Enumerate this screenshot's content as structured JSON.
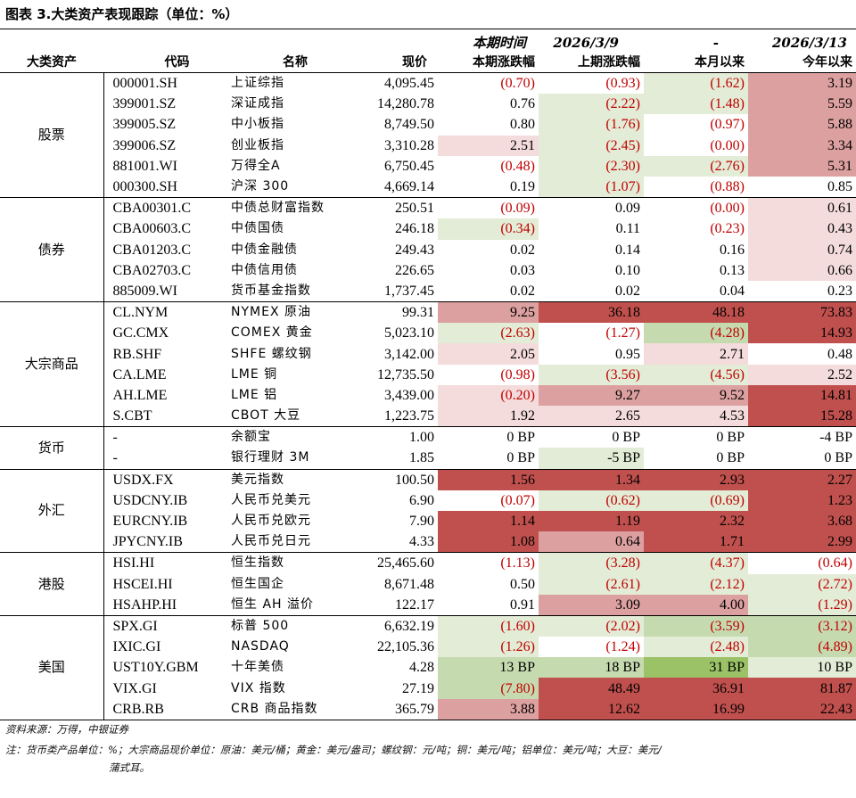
{
  "title": "图表 3.大类资产表现跟踪（单位：%）",
  "headers": {
    "row1": [
      "",
      "",
      "",
      "",
      "本期时间",
      "2026/3/9",
      "-",
      "2026/3/13"
    ],
    "row2": [
      "大类资产",
      "代码",
      "名称",
      "现价",
      "本期涨跌幅",
      "上期涨跌幅",
      "本月以来",
      "今年以来"
    ]
  },
  "colors": {
    "none": "#ffffff",
    "lightGreen": "#e3ecd6",
    "green": "#c6dab0",
    "deepGreen": "#9bc266",
    "lightRed": "#f4dcdc",
    "red": "#dca0a0",
    "deepRed": "#c0504d"
  },
  "groups": [
    {
      "name": "股票",
      "rows": [
        {
          "code": "000001.SH",
          "name": "上证综指",
          "price": "4,095.45",
          "cells": [
            {
              "v": "(0.70)",
              "neg": true,
              "bg": "none"
            },
            {
              "v": "(0.93)",
              "neg": true,
              "bg": "none"
            },
            {
              "v": "(1.62)",
              "neg": true,
              "bg": "lightGreen"
            },
            {
              "v": "3.19",
              "neg": false,
              "bg": "red"
            }
          ]
        },
        {
          "code": "399001.SZ",
          "name": "深证成指",
          "price": "14,280.78",
          "cells": [
            {
              "v": "0.76",
              "neg": false,
              "bg": "none"
            },
            {
              "v": "(2.22)",
              "neg": true,
              "bg": "lightGreen"
            },
            {
              "v": "(1.48)",
              "neg": true,
              "bg": "lightGreen"
            },
            {
              "v": "5.59",
              "neg": false,
              "bg": "red"
            }
          ]
        },
        {
          "code": "399005.SZ",
          "name": "中小板指",
          "price": "8,749.50",
          "cells": [
            {
              "v": "0.80",
              "neg": false,
              "bg": "none"
            },
            {
              "v": "(1.76)",
              "neg": true,
              "bg": "lightGreen"
            },
            {
              "v": "(0.97)",
              "neg": true,
              "bg": "none"
            },
            {
              "v": "5.88",
              "neg": false,
              "bg": "red"
            }
          ]
        },
        {
          "code": "399006.SZ",
          "name": "创业板指",
          "price": "3,310.28",
          "cells": [
            {
              "v": "2.51",
              "neg": false,
              "bg": "lightRed"
            },
            {
              "v": "(2.45)",
              "neg": true,
              "bg": "lightGreen"
            },
            {
              "v": "(0.00)",
              "neg": true,
              "bg": "none"
            },
            {
              "v": "3.34",
              "neg": false,
              "bg": "red"
            }
          ]
        },
        {
          "code": "881001.WI",
          "name": "万得全A",
          "price": "6,750.45",
          "cells": [
            {
              "v": "(0.48)",
              "neg": true,
              "bg": "none"
            },
            {
              "v": "(2.30)",
              "neg": true,
              "bg": "lightGreen"
            },
            {
              "v": "(2.76)",
              "neg": true,
              "bg": "lightGreen"
            },
            {
              "v": "5.31",
              "neg": false,
              "bg": "red"
            }
          ]
        },
        {
          "code": "000300.SH",
          "name": "沪深 300",
          "price": "4,669.14",
          "cells": [
            {
              "v": "0.19",
              "neg": false,
              "bg": "none"
            },
            {
              "v": "(1.07)",
              "neg": true,
              "bg": "lightGreen"
            },
            {
              "v": "(0.88)",
              "neg": true,
              "bg": "none"
            },
            {
              "v": "0.85",
              "neg": false,
              "bg": "none"
            }
          ]
        }
      ]
    },
    {
      "name": "债券",
      "rows": [
        {
          "code": "CBA00301.C",
          "name": "中债总财富指数",
          "price": "250.51",
          "cells": [
            {
              "v": "(0.09)",
              "neg": true,
              "bg": "none"
            },
            {
              "v": "0.09",
              "neg": false,
              "bg": "none"
            },
            {
              "v": "(0.00)",
              "neg": true,
              "bg": "none"
            },
            {
              "v": "0.61",
              "neg": false,
              "bg": "lightRed"
            }
          ]
        },
        {
          "code": "CBA00603.C",
          "name": "中债国债",
          "price": "246.18",
          "cells": [
            {
              "v": "(0.34)",
              "neg": true,
              "bg": "lightGreen"
            },
            {
              "v": "0.11",
              "neg": false,
              "bg": "none"
            },
            {
              "v": "(0.23)",
              "neg": true,
              "bg": "none"
            },
            {
              "v": "0.43",
              "neg": false,
              "bg": "lightRed"
            }
          ]
        },
        {
          "code": "CBA01203.C",
          "name": "中债金融债",
          "price": "249.43",
          "cells": [
            {
              "v": "0.02",
              "neg": false,
              "bg": "none"
            },
            {
              "v": "0.14",
              "neg": false,
              "bg": "none"
            },
            {
              "v": "0.16",
              "neg": false,
              "bg": "none"
            },
            {
              "v": "0.74",
              "neg": false,
              "bg": "lightRed"
            }
          ]
        },
        {
          "code": "CBA02703.C",
          "name": "中债信用债",
          "price": "226.65",
          "cells": [
            {
              "v": "0.03",
              "neg": false,
              "bg": "none"
            },
            {
              "v": "0.10",
              "neg": false,
              "bg": "none"
            },
            {
              "v": "0.13",
              "neg": false,
              "bg": "none"
            },
            {
              "v": "0.66",
              "neg": false,
              "bg": "lightRed"
            }
          ]
        },
        {
          "code": "885009.WI",
          "name": "货币基金指数",
          "price": "1,737.45",
          "cells": [
            {
              "v": "0.02",
              "neg": false,
              "bg": "none"
            },
            {
              "v": "0.02",
              "neg": false,
              "bg": "none"
            },
            {
              "v": "0.04",
              "neg": false,
              "bg": "none"
            },
            {
              "v": "0.23",
              "neg": false,
              "bg": "none"
            }
          ]
        }
      ]
    },
    {
      "name": "大宗商品",
      "rows": [
        {
          "code": "CL.NYM",
          "name": "NYMEX 原油",
          "price": "99.31",
          "cells": [
            {
              "v": "9.25",
              "neg": false,
              "bg": "red"
            },
            {
              "v": "36.18",
              "neg": false,
              "bg": "deepRed"
            },
            {
              "v": "48.18",
              "neg": false,
              "bg": "deepRed"
            },
            {
              "v": "73.83",
              "neg": false,
              "bg": "deepRed"
            }
          ]
        },
        {
          "code": "GC.CMX",
          "name": "COMEX 黄金",
          "price": "5,023.10",
          "cells": [
            {
              "v": "(2.63)",
              "neg": true,
              "bg": "lightGreen"
            },
            {
              "v": "(1.27)",
              "neg": true,
              "bg": "none"
            },
            {
              "v": "(4.28)",
              "neg": true,
              "bg": "green"
            },
            {
              "v": "14.93",
              "neg": false,
              "bg": "deepRed"
            }
          ]
        },
        {
          "code": "RB.SHF",
          "name": "SHFE 螺纹钢",
          "price": "3,142.00",
          "cells": [
            {
              "v": "2.05",
              "neg": false,
              "bg": "lightRed"
            },
            {
              "v": "0.95",
              "neg": false,
              "bg": "none"
            },
            {
              "v": "2.71",
              "neg": false,
              "bg": "lightRed"
            },
            {
              "v": "0.48",
              "neg": false,
              "bg": "none"
            }
          ]
        },
        {
          "code": "CA.LME",
          "name": "LME 铜",
          "price": "12,735.50",
          "cells": [
            {
              "v": "(0.98)",
              "neg": true,
              "bg": "none"
            },
            {
              "v": "(3.56)",
              "neg": true,
              "bg": "lightGreen"
            },
            {
              "v": "(4.56)",
              "neg": true,
              "bg": "lightGreen"
            },
            {
              "v": "2.52",
              "neg": false,
              "bg": "lightRed"
            }
          ]
        },
        {
          "code": "AH.LME",
          "name": "LME 铝",
          "price": "3,439.00",
          "cells": [
            {
              "v": "(0.20)",
              "neg": true,
              "bg": "lightRed"
            },
            {
              "v": "9.27",
              "neg": false,
              "bg": "red"
            },
            {
              "v": "9.52",
              "neg": false,
              "bg": "red"
            },
            {
              "v": "14.81",
              "neg": false,
              "bg": "deepRed"
            }
          ]
        },
        {
          "code": "S.CBT",
          "name": "CBOT 大豆",
          "price": "1,223.75",
          "cells": [
            {
              "v": "1.92",
              "neg": false,
              "bg": "lightRed"
            },
            {
              "v": "2.65",
              "neg": false,
              "bg": "lightRed"
            },
            {
              "v": "4.53",
              "neg": false,
              "bg": "lightRed"
            },
            {
              "v": "15.28",
              "neg": false,
              "bg": "deepRed"
            }
          ]
        }
      ]
    },
    {
      "name": "货币",
      "rows": [
        {
          "code": "-",
          "name": "余额宝",
          "price": "1.00",
          "cells": [
            {
              "v": "0 BP",
              "neg": false,
              "bg": "none"
            },
            {
              "v": "0 BP",
              "neg": false,
              "bg": "none"
            },
            {
              "v": "0 BP",
              "neg": false,
              "bg": "none"
            },
            {
              "v": "-4 BP",
              "neg": false,
              "bg": "none"
            }
          ]
        },
        {
          "code": "-",
          "name": "银行理财 3M",
          "price": "1.85",
          "cells": [
            {
              "v": "0 BP",
              "neg": false,
              "bg": "none"
            },
            {
              "v": "-5 BP",
              "neg": false,
              "bg": "lightGreen"
            },
            {
              "v": "0 BP",
              "neg": false,
              "bg": "none"
            },
            {
              "v": "0 BP",
              "neg": false,
              "bg": "none"
            }
          ]
        }
      ]
    },
    {
      "name": "外汇",
      "rows": [
        {
          "code": "USDX.FX",
          "name": "美元指数",
          "price": "100.50",
          "cells": [
            {
              "v": "1.56",
              "neg": false,
              "bg": "deepRed"
            },
            {
              "v": "1.34",
              "neg": false,
              "bg": "deepRed"
            },
            {
              "v": "2.93",
              "neg": false,
              "bg": "deepRed"
            },
            {
              "v": "2.27",
              "neg": false,
              "bg": "deepRed"
            }
          ]
        },
        {
          "code": "USDCNY.IB",
          "name": "人民币兑美元",
          "price": "6.90",
          "cells": [
            {
              "v": "(0.07)",
              "neg": true,
              "bg": "none"
            },
            {
              "v": "(0.62)",
              "neg": true,
              "bg": "lightGreen"
            },
            {
              "v": "(0.69)",
              "neg": true,
              "bg": "lightGreen"
            },
            {
              "v": "1.23",
              "neg": false,
              "bg": "deepRed"
            }
          ]
        },
        {
          "code": "EURCNY.IB",
          "name": "人民币兑欧元",
          "price": "7.90",
          "cells": [
            {
              "v": "1.14",
              "neg": false,
              "bg": "deepRed"
            },
            {
              "v": "1.19",
              "neg": false,
              "bg": "deepRed"
            },
            {
              "v": "2.32",
              "neg": false,
              "bg": "deepRed"
            },
            {
              "v": "3.68",
              "neg": false,
              "bg": "deepRed"
            }
          ]
        },
        {
          "code": "JPYCNY.IB",
          "name": "人民币兑日元",
          "price": "4.33",
          "cells": [
            {
              "v": "1.08",
              "neg": false,
              "bg": "deepRed"
            },
            {
              "v": "0.64",
              "neg": false,
              "bg": "red"
            },
            {
              "v": "1.71",
              "neg": false,
              "bg": "deepRed"
            },
            {
              "v": "2.99",
              "neg": false,
              "bg": "deepRed"
            }
          ]
        }
      ]
    },
    {
      "name": "港股",
      "rows": [
        {
          "code": "HSI.HI",
          "name": "恒生指数",
          "price": "25,465.60",
          "cells": [
            {
              "v": "(1.13)",
              "neg": true,
              "bg": "none"
            },
            {
              "v": "(3.28)",
              "neg": true,
              "bg": "lightGreen"
            },
            {
              "v": "(4.37)",
              "neg": true,
              "bg": "lightGreen"
            },
            {
              "v": "(0.64)",
              "neg": true,
              "bg": "none"
            }
          ]
        },
        {
          "code": "HSCEI.HI",
          "name": "恒生国企",
          "price": "8,671.48",
          "cells": [
            {
              "v": "0.50",
              "neg": false,
              "bg": "none"
            },
            {
              "v": "(2.61)",
              "neg": true,
              "bg": "lightGreen"
            },
            {
              "v": "(2.12)",
              "neg": true,
              "bg": "lightGreen"
            },
            {
              "v": "(2.72)",
              "neg": true,
              "bg": "lightGreen"
            }
          ]
        },
        {
          "code": "HSAHP.HI",
          "name": "恒生 AH 溢价",
          "price": "122.17",
          "cells": [
            {
              "v": "0.91",
              "neg": false,
              "bg": "none"
            },
            {
              "v": "3.09",
              "neg": false,
              "bg": "red"
            },
            {
              "v": "4.00",
              "neg": false,
              "bg": "red"
            },
            {
              "v": "(1.29)",
              "neg": true,
              "bg": "lightGreen"
            }
          ]
        }
      ]
    },
    {
      "name": "美国",
      "rows": [
        {
          "code": "SPX.GI",
          "name": "标普 500",
          "price": "6,632.19",
          "cells": [
            {
              "v": "(1.60)",
              "neg": true,
              "bg": "lightGreen"
            },
            {
              "v": "(2.02)",
              "neg": true,
              "bg": "lightGreen"
            },
            {
              "v": "(3.59)",
              "neg": true,
              "bg": "green"
            },
            {
              "v": "(3.12)",
              "neg": true,
              "bg": "green"
            }
          ]
        },
        {
          "code": "IXIC.GI",
          "name": "NASDAQ",
          "price": "22,105.36",
          "cells": [
            {
              "v": "(1.26)",
              "neg": true,
              "bg": "lightGreen"
            },
            {
              "v": "(1.24)",
              "neg": true,
              "bg": "none"
            },
            {
              "v": "(2.48)",
              "neg": true,
              "bg": "lightGreen"
            },
            {
              "v": "(4.89)",
              "neg": true,
              "bg": "green"
            }
          ]
        },
        {
          "code": "UST10Y.GBM",
          "name": "十年美债",
          "price": "4.28",
          "cells": [
            {
              "v": "13 BP",
              "neg": false,
              "bg": "green"
            },
            {
              "v": "18 BP",
              "neg": false,
              "bg": "green"
            },
            {
              "v": "31 BP",
              "neg": false,
              "bg": "deepGreen"
            },
            {
              "v": "10 BP",
              "neg": false,
              "bg": "lightGreen"
            }
          ]
        },
        {
          "code": "VIX.GI",
          "name": "VIX 指数",
          "price": "27.19",
          "cells": [
            {
              "v": "(7.80)",
              "neg": true,
              "bg": "green"
            },
            {
              "v": "48.49",
              "neg": false,
              "bg": "deepRed"
            },
            {
              "v": "36.91",
              "neg": false,
              "bg": "deepRed"
            },
            {
              "v": "81.87",
              "neg": false,
              "bg": "deepRed"
            }
          ]
        },
        {
          "code": "CRB.RB",
          "name": "CRB 商品指数",
          "price": "365.79",
          "cells": [
            {
              "v": "3.88",
              "neg": false,
              "bg": "red"
            },
            {
              "v": "12.62",
              "neg": false,
              "bg": "deepRed"
            },
            {
              "v": "16.99",
              "neg": false,
              "bg": "deepRed"
            },
            {
              "v": "22.43",
              "neg": false,
              "bg": "deepRed"
            }
          ]
        }
      ]
    }
  ],
  "source": "资料来源：万得，中银证券",
  "note1": "注：货币类产品单位：%；大宗商品现价单位：原油：美元/桶；黄金：美元/盎司；螺纹钢：元/吨；铜：美元/吨；铝单位：美元/吨；大豆：美元/",
  "note2": "蒲式耳。"
}
